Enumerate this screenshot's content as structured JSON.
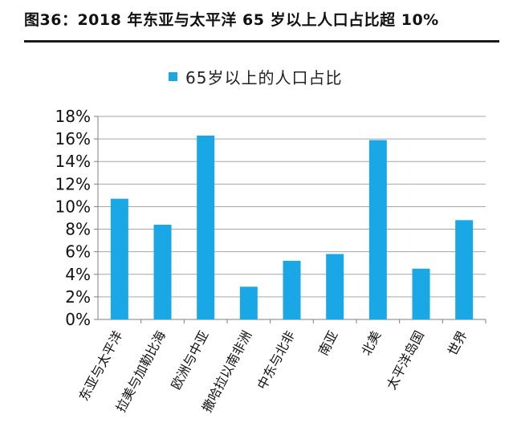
{
  "figure": {
    "title": "图36：2018 年东亚与太平洋 65 岁以上人口占比超 10%"
  },
  "chart_data": {
    "type": "bar",
    "categories": [
      "东亚与太平洋",
      "拉美与加勒比海",
      "欧洲与中亚",
      "撒哈拉以南非洲",
      "中东与北非",
      "南亚",
      "北美",
      "太平洋岛国",
      "世界"
    ],
    "series": [
      {
        "name": "65岁以上的人口占比",
        "values": [
          10.7,
          8.4,
          16.3,
          2.9,
          5.2,
          5.8,
          15.9,
          4.5,
          8.8
        ]
      }
    ],
    "ylim": [
      0,
      18
    ],
    "yticks": [
      0,
      2,
      4,
      6,
      8,
      10,
      12,
      14,
      16,
      18
    ],
    "ytick_suffix": "%",
    "grid": true,
    "legend_position": "top",
    "colors": {
      "bar": "#1AA7E6",
      "grid": "#a6a6a6",
      "axis": "#7f7f7f"
    }
  }
}
